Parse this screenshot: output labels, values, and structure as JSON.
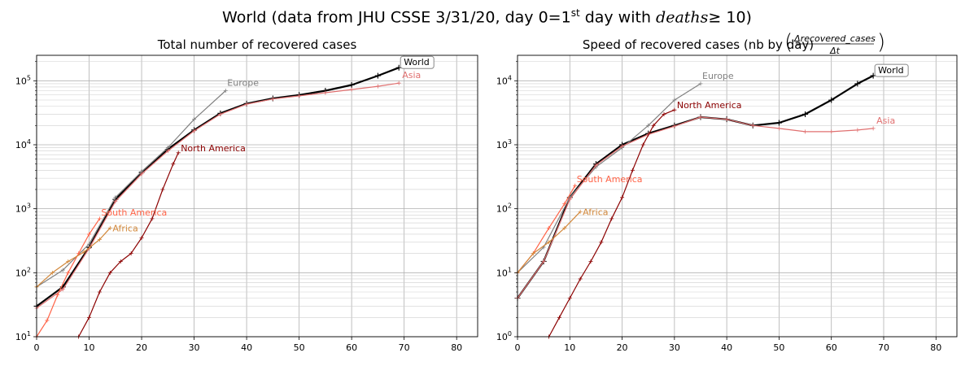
{
  "figure": {
    "title_prefix": "World (data from JHU CSSE 3/31/20, day 0=1",
    "title_sup": "st",
    "title_mid": " day with ",
    "title_italic": "deaths",
    "title_suffix": "≥ 10)"
  },
  "chart_data": [
    {
      "type": "line",
      "title": "Total number of recovered cases",
      "xlabel": "",
      "ylabel": "",
      "xlim": [
        0,
        84
      ],
      "ylim": [
        10,
        250000
      ],
      "yscale": "log",
      "grid": true,
      "x_ticks": [
        0,
        10,
        20,
        30,
        40,
        50,
        60,
        70,
        80
      ],
      "y_ticks": [
        {
          "v": 10,
          "b": "10",
          "e": "1"
        },
        {
          "v": 100,
          "b": "10",
          "e": "2"
        },
        {
          "v": 1000,
          "b": "10",
          "e": "3"
        },
        {
          "v": 10000,
          "b": "10",
          "e": "4"
        },
        {
          "v": 100000,
          "b": "10",
          "e": "5"
        }
      ],
      "series": [
        {
          "name": "World",
          "color": "#000000",
          "boxed": true,
          "x": [
            0,
            5,
            10,
            15,
            20,
            25,
            30,
            35,
            40,
            45,
            50,
            55,
            60,
            65,
            69
          ],
          "y": [
            30,
            60,
            250,
            1400,
            3700,
            8500,
            17000,
            31000,
            44000,
            53000,
            60000,
            70000,
            86000,
            120000,
            160000
          ]
        },
        {
          "name": "Europe",
          "color": "#808080",
          "x": [
            0,
            5,
            10,
            15,
            20,
            25,
            30,
            36
          ],
          "y": [
            60,
            110,
            280,
            1500,
            3800,
            9000,
            25000,
            70000
          ]
        },
        {
          "name": "Asia",
          "color": "#e07070",
          "x": [
            0,
            5,
            10,
            15,
            20,
            25,
            30,
            35,
            40,
            45,
            50,
            55,
            60,
            65,
            69
          ],
          "y": [
            28,
            55,
            240,
            1300,
            3500,
            8000,
            16500,
            30000,
            43000,
            52000,
            58000,
            65000,
            73000,
            82000,
            92000
          ]
        },
        {
          "name": "North America",
          "color": "#8b0000",
          "x": [
            8,
            10,
            12,
            14,
            16,
            18,
            20,
            22,
            24,
            26,
            27
          ],
          "y": [
            10,
            20,
            50,
            100,
            150,
            200,
            350,
            700,
            2000,
            5000,
            7500
          ]
        },
        {
          "name": "South America",
          "color": "#ff6347",
          "x": [
            0,
            2,
            4,
            6,
            8,
            10,
            12
          ],
          "y": [
            10,
            18,
            45,
            100,
            200,
            400,
            700
          ]
        },
        {
          "name": "Africa",
          "color": "#d2883b",
          "x": [
            0,
            3,
            6,
            9,
            12,
            14
          ],
          "y": [
            60,
            100,
            150,
            210,
            330,
            500
          ]
        }
      ]
    },
    {
      "type": "line",
      "title_text": "Speed of recovered cases (nb by day)",
      "title_frac_num": "Δrecovered_cases",
      "title_frac_den": "Δt",
      "xlabel": "",
      "ylabel": "",
      "xlim": [
        0,
        84
      ],
      "ylim": [
        1,
        25000
      ],
      "yscale": "log",
      "grid": true,
      "x_ticks": [
        0,
        10,
        20,
        30,
        40,
        50,
        60,
        70,
        80
      ],
      "y_ticks": [
        {
          "v": 1,
          "b": "10",
          "e": "0"
        },
        {
          "v": 10,
          "b": "10",
          "e": "1"
        },
        {
          "v": 100,
          "b": "10",
          "e": "2"
        },
        {
          "v": 1000,
          "b": "10",
          "e": "3"
        },
        {
          "v": 10000,
          "b": "10",
          "e": "4"
        }
      ],
      "series": [
        {
          "name": "World",
          "color": "#000000",
          "boxed": true,
          "x": [
            0,
            5,
            10,
            15,
            20,
            25,
            30,
            35,
            40,
            45,
            50,
            55,
            60,
            65,
            68
          ],
          "y": [
            4,
            15,
            150,
            500,
            1000,
            1500,
            2000,
            2700,
            2500,
            2000,
            2200,
            3000,
            5000,
            9000,
            12000
          ]
        },
        {
          "name": "Europe",
          "color": "#808080",
          "x": [
            0,
            5,
            10,
            15,
            20,
            25,
            30,
            35
          ],
          "y": [
            10,
            25,
            150,
            450,
            900,
            2000,
            5000,
            9000
          ]
        },
        {
          "name": "Asia",
          "color": "#e07070",
          "x": [
            0,
            5,
            10,
            15,
            20,
            25,
            30,
            35,
            40,
            45,
            50,
            55,
            60,
            65,
            68
          ],
          "y": [
            4,
            15,
            140,
            480,
            950,
            1450,
            1950,
            2700,
            2500,
            2000,
            1800,
            1600,
            1600,
            1700,
            1800
          ]
        },
        {
          "name": "North America",
          "color": "#8b0000",
          "x": [
            6,
            8,
            10,
            12,
            14,
            16,
            18,
            20,
            22,
            24,
            26,
            28,
            30
          ],
          "y": [
            1,
            2,
            4,
            8,
            15,
            30,
            70,
            150,
            400,
            1000,
            2000,
            3000,
            3500
          ]
        },
        {
          "name": "South America",
          "color": "#ff6347",
          "x": [
            0,
            3,
            6,
            9,
            11
          ],
          "y": [
            10,
            20,
            50,
            120,
            230
          ]
        },
        {
          "name": "Africa",
          "color": "#d2883b",
          "x": [
            0,
            3,
            6,
            9,
            12
          ],
          "y": [
            10,
            20,
            30,
            50,
            90
          ]
        }
      ]
    }
  ]
}
